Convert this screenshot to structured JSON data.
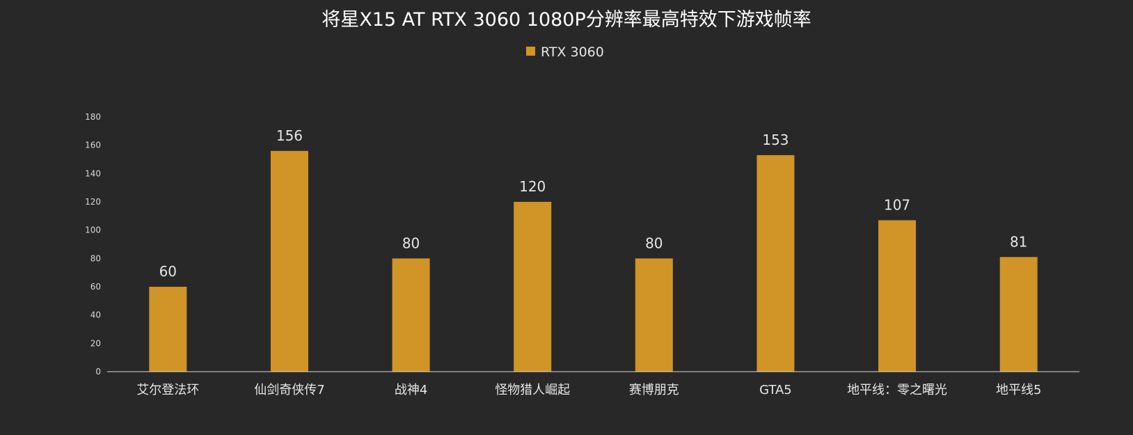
{
  "chart_data": {
    "type": "bar",
    "title": "将星X15 AT RTX 3060 1080P分辨率最高特效下游戏帧率",
    "xlabel": "",
    "ylabel": "",
    "categories": [
      "艾尔登法环",
      "仙剑奇侠传7",
      "战神4",
      "怪物猎人崛起",
      "赛博朋克",
      "GTA5",
      "地平线：零之曙光",
      "地平线5"
    ],
    "series": [
      {
        "name": "RTX 3060",
        "values": [
          60,
          156,
          80,
          120,
          80,
          153,
          107,
          81
        ],
        "color": "#D09427"
      }
    ],
    "ylim": [
      0,
      180
    ],
    "yticks": [
      0,
      20,
      40,
      60,
      80,
      100,
      120,
      140,
      160,
      180
    ],
    "grid": false,
    "legend": "top-center",
    "data_labels": true,
    "background_color": "#282828"
  }
}
